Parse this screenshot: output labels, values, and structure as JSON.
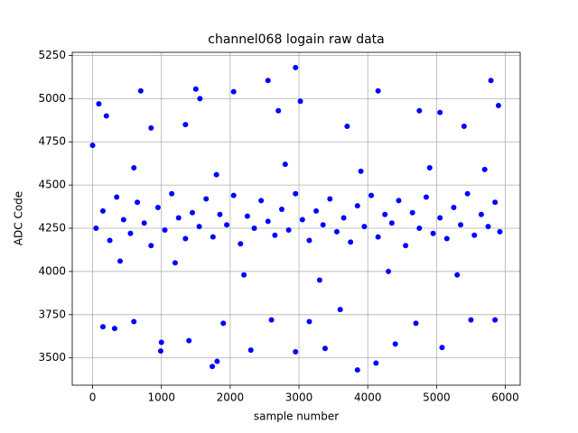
{
  "chart_data": {
    "type": "scatter",
    "title": "channel068 logain raw data",
    "x_label": "sample number",
    "y_label": "ADC Code",
    "xlim": [
      -296,
      6216
    ],
    "ylim": [
      3342,
      5268
    ],
    "xticks": [
      0,
      1000,
      2000,
      3000,
      4000,
      5000,
      6000
    ],
    "yticks": [
      3500,
      3750,
      4000,
      4250,
      4500,
      4750,
      5000,
      5250
    ],
    "grid": true,
    "color": "#0000ff",
    "x": [
      0,
      90,
      700,
      1500,
      1560,
      2050,
      2550,
      2950,
      3020,
      4150,
      5790,
      5900,
      1740,
      1810,
      3850,
      4120,
      990,
      2300,
      2950,
      3380,
      5080,
      4400,
      1000,
      150,
      320,
      600,
      1400,
      1900,
      2600,
      3150,
      3600,
      4700,
      5500,
      5850,
      200,
      850,
      1350,
      2700,
      3700,
      4750,
      5400,
      5050,
      400,
      1200,
      2200,
      3300,
      4300,
      5300,
      600,
      1800,
      2800,
      3900,
      4900,
      5700,
      50,
      150,
      250,
      350,
      450,
      550,
      650,
      750,
      850,
      950,
      1050,
      1150,
      1250,
      1350,
      1450,
      1550,
      1650,
      1750,
      1850,
      1950,
      2050,
      2150,
      2250,
      2350,
      2450,
      2550,
      2650,
      2750,
      2850,
      2950,
      3050,
      3150,
      3250,
      3350,
      3450,
      3550,
      3650,
      3750,
      3850,
      3950,
      4050,
      4150,
      4250,
      4350,
      4450,
      4550,
      4650,
      4750,
      4850,
      4950,
      5050,
      5150,
      5250,
      5350,
      5450,
      5550,
      5650,
      5750,
      5850,
      5920
    ],
    "values": [
      4730,
      4970,
      5045,
      5055,
      5000,
      5040,
      5105,
      5180,
      4985,
      5045,
      5105,
      4960,
      3450,
      3480,
      3430,
      3470,
      3540,
      3545,
      3535,
      3555,
      3560,
      3580,
      3590,
      3680,
      3670,
      3710,
      3600,
      3700,
      3720,
      3710,
      3780,
      3700,
      3720,
      3720,
      4900,
      4830,
      4850,
      4930,
      4840,
      4930,
      4840,
      4920,
      4060,
      4050,
      3980,
      3950,
      4000,
      3980,
      4600,
      4560,
      4620,
      4580,
      4600,
      4590,
      4250,
      4350,
      4180,
      4430,
      4300,
      4220,
      4400,
      4280,
      4150,
      4370,
      4240,
      4450,
      4310,
      4190,
      4340,
      4260,
      4420,
      4200,
      4330,
      4270,
      4440,
      4160,
      4320,
      4250,
      4410,
      4290,
      4210,
      4360,
      4240,
      4450,
      4300,
      4180,
      4350,
      4270,
      4420,
      4230,
      4310,
      4170,
      4380,
      4260,
      4440,
      4200,
      4330,
      4280,
      4410,
      4150,
      4340,
      4250,
      4430,
      4220,
      4310,
      4190,
      4370,
      4270,
      4450,
      4210,
      4330,
      4260,
      4400,
      4230
    ]
  }
}
